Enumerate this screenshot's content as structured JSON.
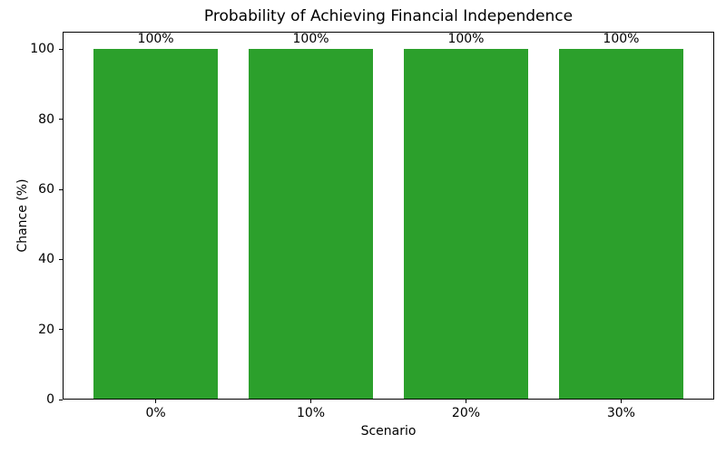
{
  "chart_data": {
    "type": "bar",
    "title": "Probability of Achieving Financial Independence",
    "xlabel": "Scenario",
    "ylabel": "Chance (%)",
    "categories": [
      "0%",
      "10%",
      "20%",
      "30%"
    ],
    "values": [
      100,
      100,
      100,
      100
    ],
    "bar_labels": [
      "100%",
      "100%",
      "100%",
      "100%"
    ],
    "yticks": [
      0,
      20,
      40,
      60,
      80,
      100
    ],
    "ytick_labels": [
      "0",
      "20",
      "40",
      "60",
      "80",
      "100"
    ],
    "ylim": [
      0,
      105
    ],
    "bar_color": "#2ca02c",
    "axis_color": "#000000",
    "background_color": "#ffffff",
    "grid": false,
    "legend": "none",
    "bar_width_fraction": 0.8
  }
}
